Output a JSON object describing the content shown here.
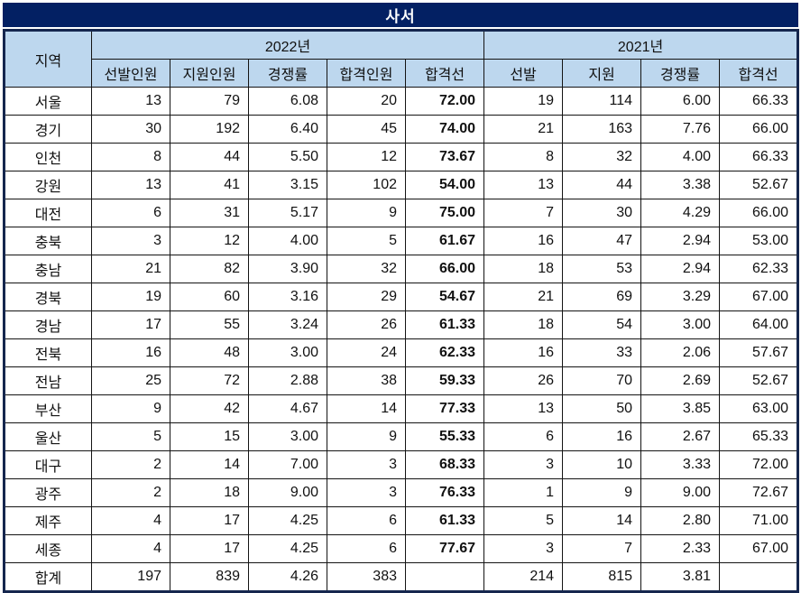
{
  "title": "사서",
  "colors": {
    "title_bg": "#032063",
    "header_bg": "#BDD7EE",
    "pass_line_blue": "#0D74C8",
    "border_dark": "#15264e"
  },
  "table": {
    "region_header": "지역",
    "groups": [
      {
        "label": "2022년",
        "columns": [
          "선발인원",
          "지원인원",
          "경쟁률",
          "합격인원",
          "합격선"
        ]
      },
      {
        "label": "2021년",
        "columns": [
          "선발",
          "지원",
          "경쟁률",
          "합격선"
        ]
      }
    ],
    "rows": [
      {
        "region": "서울",
        "values": [
          "13",
          "79",
          "6.08",
          "20",
          "72.00",
          "19",
          "114",
          "6.00",
          "66.33"
        ]
      },
      {
        "region": "경기",
        "values": [
          "30",
          "192",
          "6.40",
          "45",
          "74.00",
          "21",
          "163",
          "7.76",
          "66.00"
        ]
      },
      {
        "region": "인천",
        "values": [
          "8",
          "44",
          "5.50",
          "12",
          "73.67",
          "8",
          "32",
          "4.00",
          "66.33"
        ]
      },
      {
        "region": "강원",
        "values": [
          "13",
          "41",
          "3.15",
          "102",
          "54.00",
          "13",
          "44",
          "3.38",
          "52.67"
        ]
      },
      {
        "region": "대전",
        "values": [
          "6",
          "31",
          "5.17",
          "9",
          "75.00",
          "7",
          "30",
          "4.29",
          "66.00"
        ]
      },
      {
        "region": "충북",
        "values": [
          "3",
          "12",
          "4.00",
          "5",
          "61.67",
          "16",
          "47",
          "2.94",
          "53.00"
        ]
      },
      {
        "region": "충남",
        "values": [
          "21",
          "82",
          "3.90",
          "32",
          "66.00",
          "18",
          "53",
          "2.94",
          "62.33"
        ]
      },
      {
        "region": "경북",
        "values": [
          "19",
          "60",
          "3.16",
          "29",
          "54.67",
          "21",
          "69",
          "3.29",
          "67.00"
        ]
      },
      {
        "region": "경남",
        "values": [
          "17",
          "55",
          "3.24",
          "26",
          "61.33",
          "18",
          "54",
          "3.00",
          "64.00"
        ]
      },
      {
        "region": "전북",
        "values": [
          "16",
          "48",
          "3.00",
          "24",
          "62.33",
          "16",
          "33",
          "2.06",
          "57.67"
        ]
      },
      {
        "region": "전남",
        "values": [
          "25",
          "72",
          "2.88",
          "38",
          "59.33",
          "26",
          "70",
          "2.69",
          "52.67"
        ]
      },
      {
        "region": "부산",
        "values": [
          "9",
          "42",
          "4.67",
          "14",
          "77.33",
          "13",
          "50",
          "3.85",
          "63.00"
        ]
      },
      {
        "region": "울산",
        "values": [
          "5",
          "15",
          "3.00",
          "9",
          "55.33",
          "6",
          "16",
          "2.67",
          "65.33"
        ]
      },
      {
        "region": "대구",
        "values": [
          "2",
          "14",
          "7.00",
          "3",
          "68.33",
          "3",
          "10",
          "3.33",
          "72.00"
        ]
      },
      {
        "region": "광주",
        "values": [
          "2",
          "18",
          "9.00",
          "3",
          "76.33",
          "1",
          "9",
          "9.00",
          "72.67"
        ]
      },
      {
        "region": "제주",
        "values": [
          "4",
          "17",
          "4.25",
          "6",
          "61.33",
          "5",
          "14",
          "2.80",
          "71.00"
        ]
      },
      {
        "region": "세종",
        "values": [
          "4",
          "17",
          "4.25",
          "6",
          "77.67",
          "3",
          "7",
          "2.33",
          "67.00"
        ]
      },
      {
        "region": "합계",
        "values": [
          "197",
          "839",
          "4.26",
          "383",
          "",
          "214",
          "815",
          "3.81",
          ""
        ]
      }
    ]
  }
}
